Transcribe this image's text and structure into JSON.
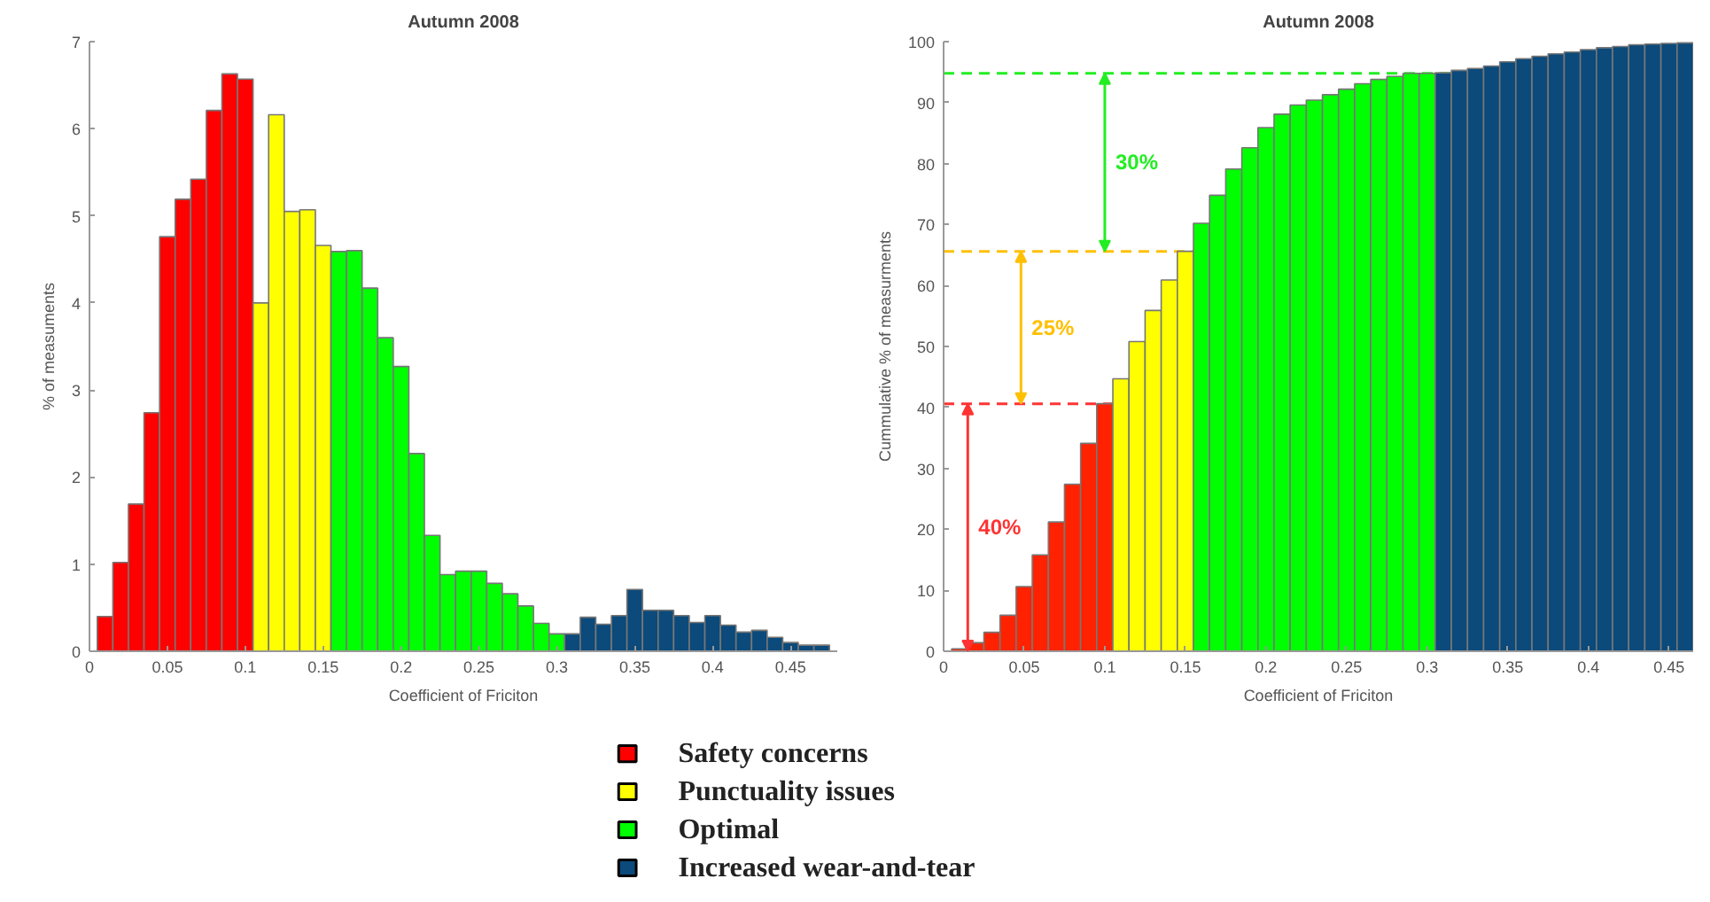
{
  "chart_data": [
    {
      "type": "histogram",
      "title": "Autumn 2008",
      "xlabel": "Coefficient of Friciton",
      "ylabel": "% of measuments",
      "bins": [
        0.005,
        0.015,
        0.025,
        0.035,
        0.045,
        0.055,
        0.065,
        0.075,
        0.085,
        0.095,
        0.105,
        0.115,
        0.125,
        0.135,
        0.145,
        0.155,
        0.165,
        0.175,
        0.185,
        0.195,
        0.205,
        0.215,
        0.225,
        0.235,
        0.245,
        0.255,
        0.265,
        0.275,
        0.285,
        0.295,
        0.305,
        0.315,
        0.325,
        0.335,
        0.345,
        0.355,
        0.365,
        0.375,
        0.385,
        0.395,
        0.405,
        0.415,
        0.425,
        0.435,
        0.445,
        0.455,
        0.465,
        0.475
      ],
      "series": [
        {
          "name": "Safety concerns",
          "color": "#ff0000",
          "values": [
            0.4,
            1.02,
            1.69,
            2.74,
            4.76,
            5.19,
            5.42,
            6.21,
            6.63,
            6.57,
            null,
            null,
            null,
            null,
            null,
            null,
            null,
            null,
            null,
            null,
            null,
            null,
            null,
            null,
            null,
            null,
            null,
            null,
            null,
            null,
            null,
            null,
            null,
            null,
            null,
            null,
            null,
            null,
            null,
            null,
            null,
            null,
            null,
            null,
            null,
            null,
            null
          ]
        },
        {
          "name": "Punctuality issues",
          "color": "#ffff00",
          "values": [
            null,
            null,
            null,
            null,
            null,
            null,
            null,
            null,
            null,
            null,
            4.0,
            6.16,
            5.05,
            5.07,
            4.66,
            null,
            null,
            null,
            null,
            null,
            null,
            null,
            null,
            null,
            null,
            null,
            null,
            null,
            null,
            null,
            null,
            null,
            null,
            null,
            null,
            null,
            null,
            null,
            null,
            null,
            null,
            null,
            null,
            null,
            null,
            null,
            null
          ]
        },
        {
          "name": "Optimal",
          "color": "#00ff00",
          "values": [
            null,
            null,
            null,
            null,
            null,
            null,
            null,
            null,
            null,
            null,
            null,
            null,
            null,
            null,
            null,
            4.59,
            4.6,
            4.17,
            3.6,
            3.27,
            2.27,
            1.33,
            0.88,
            0.92,
            0.92,
            0.78,
            0.66,
            0.52,
            0.32,
            0.2,
            null,
            null,
            null,
            null,
            null,
            null,
            null,
            null,
            null,
            null,
            null,
            null,
            null,
            null,
            null,
            null,
            null
          ]
        },
        {
          "name": "Increased wear-and-tear",
          "color": "#0b4a7a",
          "values": [
            null,
            null,
            null,
            null,
            null,
            null,
            null,
            null,
            null,
            null,
            null,
            null,
            null,
            null,
            null,
            null,
            null,
            null,
            null,
            null,
            null,
            null,
            null,
            null,
            null,
            null,
            null,
            null,
            null,
            null,
            0.2,
            0.39,
            0.31,
            0.41,
            0.71,
            0.47,
            0.47,
            0.41,
            0.33,
            0.41,
            0.3,
            0.22,
            0.24,
            0.16,
            0.1,
            0.07,
            0.07
          ]
        }
      ],
      "xlim": [
        0,
        0.48
      ],
      "xticks": [
        0,
        0.05,
        0.1,
        0.15,
        0.2,
        0.25,
        0.3,
        0.35,
        0.4,
        0.45
      ],
      "ylim": [
        0,
        7
      ],
      "yticks": [
        0,
        1,
        2,
        3,
        4,
        5,
        6,
        7
      ],
      "grid": false,
      "legend": "bottom"
    },
    {
      "type": "histogram",
      "title": "Autumn 2008",
      "xlabel": "Coefficient of Friciton",
      "ylabel": "Cummulative % of measurments",
      "bins": [
        0.005,
        0.015,
        0.025,
        0.035,
        0.045,
        0.055,
        0.065,
        0.075,
        0.085,
        0.095,
        0.105,
        0.115,
        0.125,
        0.135,
        0.145,
        0.155,
        0.165,
        0.175,
        0.185,
        0.195,
        0.205,
        0.215,
        0.225,
        0.235,
        0.245,
        0.255,
        0.265,
        0.275,
        0.285,
        0.295,
        0.305,
        0.315,
        0.325,
        0.335,
        0.345,
        0.355,
        0.365,
        0.375,
        0.385,
        0.395,
        0.405,
        0.415,
        0.425,
        0.435,
        0.445,
        0.455,
        0.465
      ],
      "series": [
        {
          "color": "#ff2200",
          "values": [
            0.4,
            1.4,
            3.1,
            5.9,
            10.6,
            15.8,
            21.2,
            27.4,
            34.1,
            40.6,
            null,
            null,
            null,
            null,
            null,
            null,
            null,
            null,
            null,
            null,
            null,
            null,
            null,
            null,
            null,
            null,
            null,
            null,
            null,
            null,
            null,
            null,
            null,
            null,
            null,
            null,
            null,
            null,
            null,
            null,
            null,
            null,
            null,
            null,
            null,
            null
          ]
        },
        {
          "color": "#ffff00",
          "values": [
            null,
            null,
            null,
            null,
            null,
            null,
            null,
            null,
            null,
            null,
            44.7,
            50.8,
            55.9,
            60.9,
            65.6,
            null,
            null,
            null,
            null,
            null,
            null,
            null,
            null,
            null,
            null,
            null,
            null,
            null,
            null,
            null,
            null,
            null,
            null,
            null,
            null,
            null,
            null,
            null,
            null,
            null,
            null,
            null,
            null,
            null,
            null,
            null
          ]
        },
        {
          "color": "#00ff00",
          "values": [
            null,
            null,
            null,
            null,
            null,
            null,
            null,
            null,
            null,
            null,
            null,
            null,
            null,
            null,
            null,
            70.2,
            74.8,
            79.1,
            82.6,
            85.9,
            88.1,
            89.6,
            90.4,
            91.3,
            92.2,
            93.1,
            93.8,
            94.3,
            94.8,
            94.8,
            null,
            null,
            null,
            null,
            null,
            null,
            null,
            null,
            null,
            null,
            null,
            null,
            null,
            null,
            null,
            null
          ]
        },
        {
          "color": "#0b4a7a",
          "values": [
            null,
            null,
            null,
            null,
            null,
            null,
            null,
            null,
            null,
            null,
            null,
            null,
            null,
            null,
            null,
            null,
            null,
            null,
            null,
            null,
            null,
            null,
            null,
            null,
            null,
            null,
            null,
            null,
            null,
            null,
            94.9,
            95.3,
            95.6,
            96.0,
            96.7,
            97.2,
            97.6,
            98.0,
            98.3,
            98.7,
            99.0,
            99.2,
            99.5,
            99.6,
            99.7,
            99.8
          ]
        }
      ],
      "ref_lines": [
        {
          "axis": "y",
          "value": 40.6,
          "color": "#ff3333",
          "line_style": "dashed"
        },
        {
          "axis": "y",
          "value": 65.6,
          "color": "#ffc000",
          "line_style": "dashed"
        },
        {
          "axis": "y",
          "value": 94.8,
          "color": "#22ee22",
          "line_style": "dashed"
        }
      ],
      "annotations": [
        "40%",
        "25%",
        "30%"
      ],
      "xlim": [
        0,
        0.465
      ],
      "xticks": [
        0,
        0.05,
        0.1,
        0.15,
        0.2,
        0.25,
        0.3,
        0.35,
        0.4,
        0.45
      ],
      "ylim": [
        0,
        100
      ],
      "yticks": [
        0,
        10,
        20,
        30,
        40,
        50,
        60,
        70,
        80,
        90,
        100
      ],
      "grid": false
    }
  ]
}
